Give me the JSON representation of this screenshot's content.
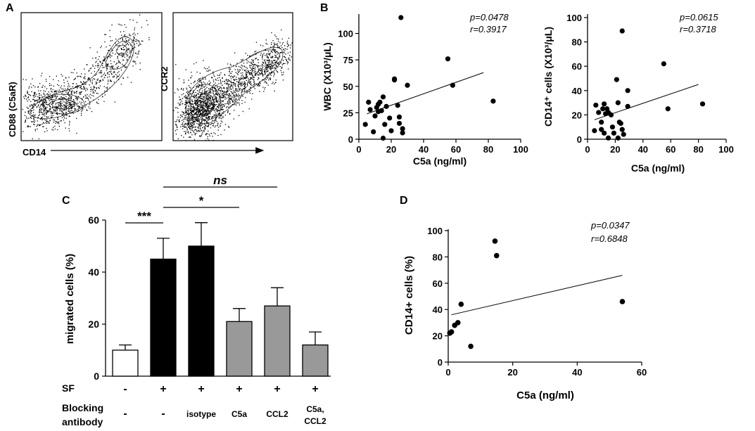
{
  "panel_labels": {
    "a": "A",
    "b": "B",
    "c": "C",
    "d": "D"
  },
  "panel_a": {
    "left_plot_ylabel": "CD88 (C5aR)",
    "right_plot_ylabel": "CCR2",
    "xlabel": "CD14"
  },
  "chart_data": [
    {
      "id": "B1",
      "type": "scatter",
      "xlabel": "C5a (ng/ml)",
      "ylabel": "WBC (X10³/μL)",
      "xlim": [
        0,
        100
      ],
      "ylim": [
        0,
        115
      ],
      "xticks": [
        0,
        20,
        40,
        60,
        80,
        100
      ],
      "yticks": [
        0,
        25,
        50,
        75,
        100
      ],
      "annotation": [
        "p=0.0478",
        "r=0.3917"
      ],
      "points": [
        [
          4,
          14
        ],
        [
          6,
          35
        ],
        [
          7,
          28
        ],
        [
          9,
          7
        ],
        [
          10,
          22
        ],
        [
          11,
          30
        ],
        [
          12,
          33
        ],
        [
          12,
          26
        ],
        [
          13,
          35
        ],
        [
          14,
          27
        ],
        [
          15,
          1
        ],
        [
          15,
          40
        ],
        [
          16,
          14
        ],
        [
          17,
          31
        ],
        [
          19,
          20
        ],
        [
          20,
          8
        ],
        [
          22,
          57
        ],
        [
          22,
          56
        ],
        [
          24,
          32
        ],
        [
          25,
          15
        ],
        [
          25,
          21
        ],
        [
          26,
          115
        ],
        [
          27,
          6
        ],
        [
          27,
          10
        ],
        [
          30,
          51
        ],
        [
          55,
          76
        ],
        [
          58,
          51
        ],
        [
          83,
          36
        ]
      ],
      "fit": [
        [
          5,
          24
        ],
        [
          77,
          63
        ]
      ]
    },
    {
      "id": "B2",
      "type": "scatter",
      "xlabel": "C5a (ng/ml)",
      "ylabel": "CD14⁺ cells (X10³/μL)",
      "xlim": [
        0,
        100
      ],
      "ylim": [
        0,
        100
      ],
      "xticks": [
        0,
        20,
        40,
        60,
        80,
        100
      ],
      "yticks": [
        0,
        20,
        40,
        60,
        80,
        100
      ],
      "annotation": [
        "p=0.0615",
        "r=0.3718"
      ],
      "points": [
        [
          5,
          7
        ],
        [
          6,
          28
        ],
        [
          8,
          22
        ],
        [
          10,
          14
        ],
        [
          10,
          8
        ],
        [
          11,
          25
        ],
        [
          12,
          5
        ],
        [
          12,
          29
        ],
        [
          13,
          21
        ],
        [
          14,
          25
        ],
        [
          15,
          1
        ],
        [
          15,
          22
        ],
        [
          17,
          20
        ],
        [
          18,
          10
        ],
        [
          19,
          5
        ],
        [
          21,
          49
        ],
        [
          22,
          1
        ],
        [
          22,
          30
        ],
        [
          23,
          14
        ],
        [
          24,
          13
        ],
        [
          25,
          89
        ],
        [
          25,
          8
        ],
        [
          26,
          4
        ],
        [
          29,
          40
        ],
        [
          29,
          27
        ],
        [
          55,
          62
        ],
        [
          58,
          25
        ],
        [
          83,
          29
        ]
      ],
      "fit": [
        [
          5,
          16
        ],
        [
          80,
          45
        ]
      ]
    },
    {
      "id": "C",
      "type": "bar",
      "ylabel": "migrated cells (%)",
      "ylim": [
        0,
        60
      ],
      "yticks": [
        0,
        20,
        40,
        60
      ],
      "values": [
        10,
        45,
        50,
        21,
        27,
        12
      ],
      "errors": [
        2,
        8,
        9,
        5,
        7,
        5
      ],
      "bar_colors": [
        "#ffffff",
        "#000000",
        "#000000",
        "#999999",
        "#999999",
        "#999999"
      ],
      "row_labels": {
        "sf": "SF",
        "blocking_1": "Blocking",
        "blocking_2": "antibody"
      },
      "sf": [
        "-",
        "+",
        "+",
        "+",
        "+",
        "+"
      ],
      "blocking_antibody": [
        [
          "-"
        ],
        [
          "-"
        ],
        [
          "isotype"
        ],
        [
          "C5a"
        ],
        [
          "CCL2"
        ],
        [
          "C5a,",
          "CCL2"
        ]
      ],
      "significance": [
        {
          "from": 0,
          "to": 1,
          "label": "***"
        },
        {
          "from": 1,
          "to": 3,
          "label": "*"
        },
        {
          "from": 1,
          "to": 4,
          "label": "ns"
        }
      ]
    },
    {
      "id": "D",
      "type": "scatter",
      "xlabel": "C5a (ng/ml)",
      "ylabel": "CD14+ cells (%)",
      "xlim": [
        0,
        60
      ],
      "ylim": [
        0,
        100
      ],
      "xticks": [
        0,
        20,
        40,
        60
      ],
      "yticks": [
        0,
        20,
        40,
        60,
        80,
        100
      ],
      "annotation": [
        "p=0.0347",
        "r=0.6848"
      ],
      "points": [
        [
          0.5,
          22
        ],
        [
          1,
          23
        ],
        [
          2,
          28
        ],
        [
          3,
          30
        ],
        [
          4,
          44
        ],
        [
          7,
          12
        ],
        [
          14.5,
          92
        ],
        [
          15,
          81
        ],
        [
          54,
          46
        ]
      ],
      "fit": [
        [
          1,
          36
        ],
        [
          54,
          66
        ]
      ]
    }
  ]
}
